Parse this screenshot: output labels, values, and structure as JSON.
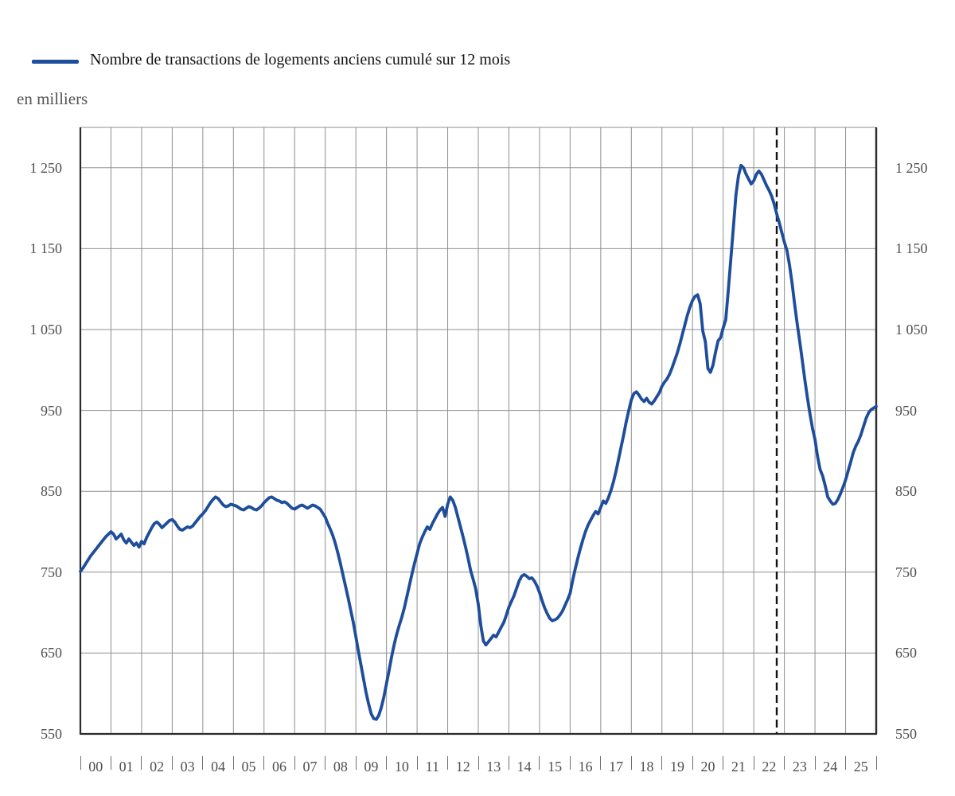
{
  "legend": {
    "label": "Nombre de transactions de logements anciens cumulé sur 12 mois"
  },
  "unit_label": "en milliers",
  "colors": {
    "line": "#1e4d9b",
    "grid": "#8f8f8f",
    "axis": "#2b2b2b",
    "dashed_line": "#111111",
    "tick_text": "#4f4f4f"
  },
  "y_axis": {
    "tick_labels": [
      "550",
      "650",
      "750",
      "850",
      "950",
      "1 050",
      "1 150",
      "1 250"
    ],
    "tick_values": [
      550,
      650,
      750,
      850,
      950,
      1050,
      1150,
      1250
    ]
  },
  "x_axis": {
    "tick_labels": [
      "00",
      "01",
      "02",
      "03",
      "04",
      "05",
      "06",
      "07",
      "08",
      "09",
      "10",
      "11",
      "12",
      "13",
      "14",
      "15",
      "16",
      "17",
      "18",
      "19",
      "20",
      "21",
      "22",
      "23",
      "24",
      "25"
    ]
  },
  "chart_data": {
    "type": "line",
    "title": "Nombre de transactions de logements anciens cumulé sur 12 mois",
    "ylabel": "en milliers",
    "ylim": [
      550,
      1300
    ],
    "gridline_step": 100,
    "legend_position": "top-left",
    "grid": true,
    "x_start": "1999-12",
    "x_frequency": "monthly",
    "x_tick_years": [
      "00",
      "01",
      "02",
      "03",
      "04",
      "05",
      "06",
      "07",
      "08",
      "09",
      "10",
      "11",
      "12",
      "13",
      "14",
      "15",
      "16",
      "17",
      "18",
      "19",
      "20",
      "21",
      "22",
      "23",
      "24",
      "25"
    ],
    "dashed_vline_month": "2022-09",
    "series_name": "Nombre de transactions de logements anciens cumulé sur 12 mois",
    "values": [
      751,
      755,
      760,
      765,
      770,
      774,
      778,
      782,
      786,
      790,
      794,
      797,
      800,
      797,
      791,
      794,
      797,
      790,
      786,
      791,
      787,
      783,
      786,
      781,
      788,
      785,
      793,
      799,
      805,
      810,
      812,
      809,
      805,
      808,
      811,
      814,
      815,
      812,
      807,
      803,
      802,
      804,
      806,
      805,
      807,
      811,
      815,
      819,
      822,
      826,
      831,
      836,
      840,
      843,
      841,
      837,
      833,
      831,
      832,
      834,
      833,
      832,
      830,
      828,
      827,
      829,
      831,
      830,
      828,
      827,
      829,
      832,
      836,
      839,
      842,
      843,
      841,
      839,
      838,
      836,
      837,
      835,
      832,
      829,
      828,
      830,
      832,
      833,
      831,
      829,
      831,
      833,
      832,
      830,
      828,
      823,
      818,
      810,
      803,
      795,
      785,
      773,
      760,
      746,
      732,
      718,
      703,
      688,
      670,
      652,
      635,
      618,
      601,
      587,
      575,
      569,
      568,
      573,
      583,
      596,
      612,
      628,
      645,
      660,
      673,
      684,
      694,
      706,
      720,
      734,
      748,
      761,
      773,
      785,
      793,
      800,
      806,
      803,
      810,
      816,
      822,
      827,
      830,
      819,
      834,
      843,
      839,
      830,
      818,
      806,
      794,
      781,
      767,
      752,
      741,
      729,
      710,
      684,
      665,
      660,
      664,
      668,
      672,
      670,
      676,
      682,
      688,
      697,
      707,
      714,
      721,
      730,
      739,
      745,
      747,
      745,
      742,
      743,
      739,
      733,
      725,
      715,
      706,
      699,
      693,
      690,
      691,
      693,
      697,
      702,
      709,
      716,
      724,
      740,
      754,
      767,
      779,
      790,
      800,
      808,
      814,
      820,
      825,
      822,
      830,
      838,
      835,
      842,
      851,
      862,
      875,
      890,
      905,
      920,
      936,
      950,
      963,
      971,
      973,
      969,
      964,
      961,
      965,
      960,
      958,
      962,
      967,
      972,
      980,
      985,
      989,
      995,
      1003,
      1012,
      1021,
      1032,
      1044,
      1056,
      1068,
      1078,
      1086,
      1091,
      1093,
      1082,
      1048,
      1035,
      1002,
      997,
      1006,
      1022,
      1036,
      1040,
      1052,
      1062,
      1098,
      1137,
      1176,
      1216,
      1240,
      1253,
      1250,
      1242,
      1236,
      1230,
      1234,
      1242,
      1246,
      1242,
      1235,
      1228,
      1222,
      1215,
      1205,
      1193,
      1182,
      1170,
      1158,
      1148,
      1130,
      1108,
      1082,
      1058,
      1036,
      1012,
      988,
      966,
      946,
      928,
      914,
      893,
      877,
      869,
      857,
      843,
      838,
      834,
      835,
      840,
      847,
      855,
      864,
      875,
      886,
      898,
      906,
      912,
      920,
      930,
      940,
      947,
      951,
      953,
      955
    ]
  }
}
